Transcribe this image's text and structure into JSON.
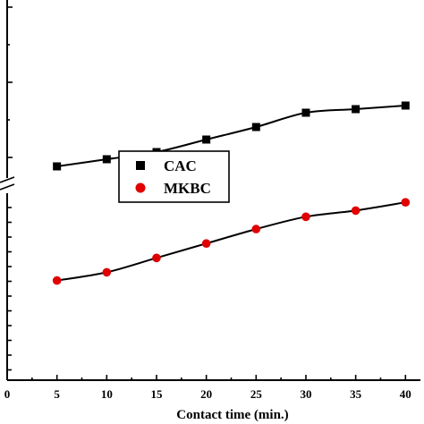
{
  "chart_data": {
    "type": "scatter",
    "title": "",
    "xlabel": "Contact time (min.)",
    "ylabel": "",
    "xlim": [
      0,
      41.5
    ],
    "x_ticks": [
      0,
      5,
      10,
      15,
      20,
      25,
      30,
      35,
      40
    ],
    "grid": false,
    "legend_position": "center-left",
    "axis_break": true,
    "series": [
      {
        "name": "CAC",
        "marker": "square",
        "color": "#000000",
        "x": [
          5,
          10,
          15,
          20,
          25,
          30,
          35,
          40
        ],
        "y": [
          0.715,
          0.735,
          0.755,
          0.79,
          0.825,
          0.865,
          0.875,
          0.885
        ],
        "fit": true
      },
      {
        "name": "MKBC",
        "marker": "circle",
        "color": "#e00000",
        "x": [
          5,
          10,
          15,
          20,
          25,
          30,
          35,
          40
        ],
        "y": [
          0.34,
          0.36,
          0.395,
          0.43,
          0.465,
          0.495,
          0.51,
          0.53
        ],
        "fit": true
      }
    ]
  }
}
